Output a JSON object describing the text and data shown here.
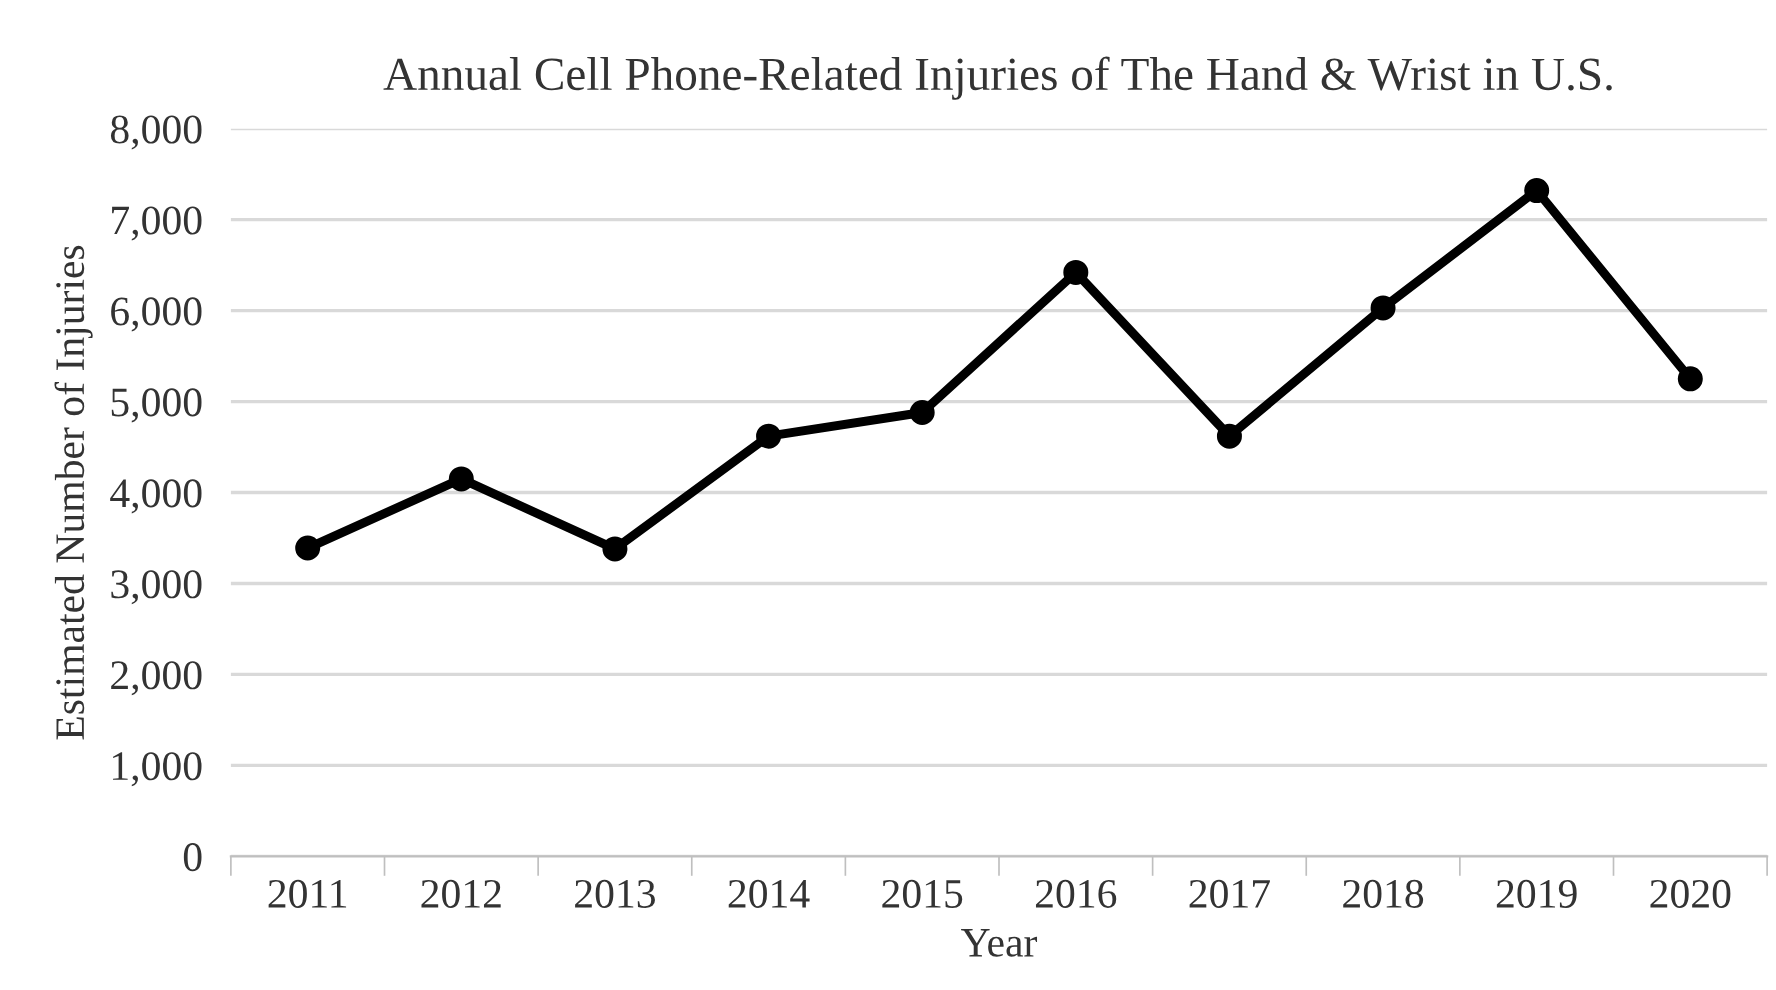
{
  "chart_data": {
    "type": "line",
    "title": "Annual Cell Phone-Related Injuries of The Hand & Wrist in U.S.",
    "xlabel": "Year",
    "ylabel": "Estimated Number of Injuries",
    "categories": [
      "2011",
      "2012",
      "2013",
      "2014",
      "2015",
      "2016",
      "2017",
      "2018",
      "2019",
      "2020"
    ],
    "series": [
      {
        "color": "#000000",
        "values": [
          3390,
          4150,
          3380,
          4620,
          4880,
          6420,
          4620,
          6030,
          7320,
          5250
        ]
      }
    ],
    "ylim": [
      0,
      8000
    ],
    "yticks": [
      {
        "value": 0,
        "label": "0"
      },
      {
        "value": 1000,
        "label": "1,000"
      },
      {
        "value": 2000,
        "label": "2,000"
      },
      {
        "value": 3000,
        "label": "3,000"
      },
      {
        "value": 4000,
        "label": "4,000"
      },
      {
        "value": 5000,
        "label": "5,000"
      },
      {
        "value": 6000,
        "label": "6,000"
      },
      {
        "value": 7000,
        "label": "7,000"
      },
      {
        "value": 8000,
        "label": "8,000"
      }
    ],
    "grid": "y",
    "marker": "circle",
    "line_style": "solid"
  }
}
